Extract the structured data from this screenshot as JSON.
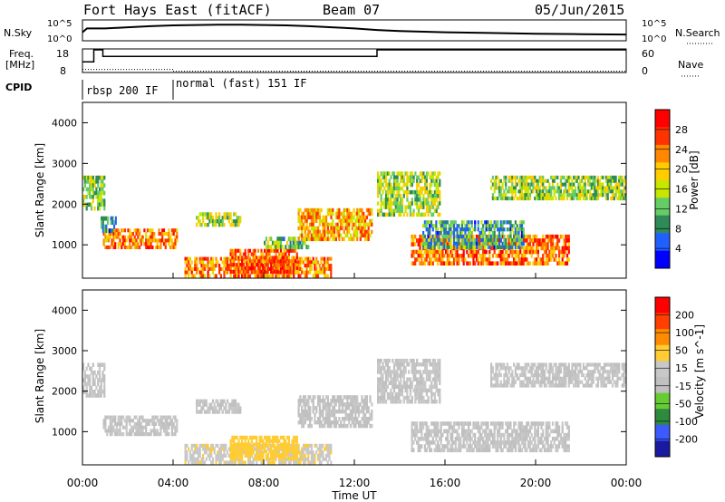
{
  "header": {
    "title": "Fort Hays East (fitACF)",
    "beam": "Beam 07",
    "date": "05/Jun/2015"
  },
  "nsky": {
    "left_label": "N.Sky",
    "left_ticks": [
      "10^5",
      "10^0"
    ],
    "right_label": "N.Search",
    "right_ticks": [
      "10^5",
      "10^0"
    ]
  },
  "freq": {
    "left_label_line1": "Freq.",
    "left_label_line2": "[MHz]",
    "left_ticks": [
      "18",
      "8"
    ],
    "right_label": "Nave",
    "right_ticks": [
      "60",
      "0"
    ]
  },
  "cpid": {
    "label": "CPID",
    "modes": [
      {
        "text": "rbsp 200 IF",
        "start_hour": 0,
        "end_hour": 4
      },
      {
        "text": "normal (fast) 151 IF",
        "start_hour": 4,
        "end_hour": 24
      }
    ]
  },
  "panels": {
    "power": {
      "ylabel": "Slant Range [km]",
      "cbar_label": "Power [dB]",
      "cbar_ticks": [
        "28",
        "24",
        "20",
        "16",
        "12",
        "8",
        "4"
      ]
    },
    "velocity": {
      "ylabel": "Slant Range [km]",
      "cbar_label": "Velocity [m s^-1]",
      "cbar_ticks": [
        "200",
        "100",
        "50",
        "15",
        "-15",
        "-50",
        "-100",
        "-200"
      ]
    }
  },
  "xaxis": {
    "label": "Time UT",
    "ticks": [
      "00:00",
      "04:00",
      "08:00",
      "12:00",
      "16:00",
      "20:00",
      "00:00"
    ]
  },
  "colors": {
    "power_scale": [
      "#0000ff",
      "#2060ff",
      "#2e8b57",
      "#66cc66",
      "#c8e600",
      "#ffcc00",
      "#ff8800",
      "#ff3300",
      "#ff0000"
    ],
    "velocity_scale": [
      "#1a1aa0",
      "#3b5bff",
      "#2e8b3e",
      "#66cc33",
      "#c0c0c0",
      "#c8c8c8",
      "#ffcc33",
      "#ff8c00",
      "#ff4000",
      "#ff0000"
    ]
  },
  "chart_data": [
    {
      "type": "line",
      "title": "N.Sky / N.Search",
      "xlabel": "Time UT",
      "x_range_hours": [
        0,
        24
      ],
      "series": [
        {
          "name": "N.Sky",
          "x": [
            0,
            0.2,
            1,
            2,
            3,
            4,
            5,
            6,
            7,
            8,
            9,
            10,
            11,
            12,
            13,
            14,
            16,
            18,
            20,
            22,
            24
          ],
          "values": [
            2.0,
            3.0,
            3.0,
            3.3,
            3.6,
            3.8,
            3.9,
            4.0,
            4.0,
            3.9,
            3.8,
            3.6,
            3.3,
            3.0,
            2.6,
            2.3,
            2.0,
            1.8,
            1.6,
            1.5,
            1.4
          ]
        }
      ],
      "ylim": [
        0,
        5
      ]
    },
    {
      "type": "line",
      "title": "Freq. / Nave",
      "x_range_hours": [
        0,
        24
      ],
      "series": [
        {
          "name": "Freq.",
          "x": [
            0,
            0.5,
            0.5,
            0.9,
            0.9,
            13,
            13,
            24
          ],
          "values": [
            12.5,
            12.5,
            18,
            18,
            15,
            15,
            18,
            18
          ]
        },
        {
          "name": "Nave",
          "x": [
            0,
            4,
            4,
            24
          ],
          "values": [
            6,
            6,
            1,
            1
          ]
        }
      ],
      "ylim": [
        8,
        18
      ]
    },
    {
      "type": "heatmap",
      "title": "Power [dB]",
      "xlabel": "Time UT",
      "ylabel": "Slant Range [km]",
      "xlim": [
        0,
        24
      ],
      "ylim": [
        180,
        4500
      ],
      "clim": [
        0,
        30
      ],
      "patches": [
        {
          "t0": 0,
          "t1": 1.0,
          "r0": 1850,
          "r1": 2700,
          "v": 13
        },
        {
          "t0": 0.9,
          "t1": 4.2,
          "r0": 900,
          "r1": 1400,
          "v": 22
        },
        {
          "t0": 0.8,
          "t1": 1.5,
          "r0": 1300,
          "r1": 1700,
          "v": 8
        },
        {
          "t0": 5,
          "t1": 7,
          "r0": 1450,
          "r1": 1800,
          "v": 14
        },
        {
          "t0": 4.5,
          "t1": 11,
          "r0": 200,
          "r1": 700,
          "v": 22
        },
        {
          "t0": 6.5,
          "t1": 9.5,
          "r0": 300,
          "r1": 900,
          "v": 24
        },
        {
          "t0": 8,
          "t1": 10,
          "r0": 900,
          "r1": 1200,
          "v": 12
        },
        {
          "t0": 9.5,
          "t1": 12.8,
          "r0": 1100,
          "r1": 1900,
          "v": 20
        },
        {
          "t0": 13,
          "t1": 15.8,
          "r0": 1700,
          "r1": 2800,
          "v": 14
        },
        {
          "t0": 14.5,
          "t1": 21.5,
          "r0": 500,
          "r1": 1250,
          "v": 23
        },
        {
          "t0": 15,
          "t1": 19.5,
          "r0": 900,
          "r1": 1600,
          "v": 9
        },
        {
          "t0": 18,
          "t1": 24,
          "r0": 2100,
          "r1": 2700,
          "v": 13
        }
      ]
    },
    {
      "type": "heatmap",
      "title": "Velocity [m s^-1]",
      "xlabel": "Time UT",
      "ylabel": "Slant Range [km]",
      "xlim": [
        0,
        24
      ],
      "ylim": [
        180,
        4500
      ],
      "clim": [
        -200,
        200
      ],
      "patches": [
        {
          "t0": 0,
          "t1": 1.0,
          "r0": 1850,
          "r1": 2700,
          "v": 0
        },
        {
          "t0": 0.9,
          "t1": 4.2,
          "r0": 900,
          "r1": 1400,
          "v": 0
        },
        {
          "t0": 5,
          "t1": 7,
          "r0": 1450,
          "r1": 1800,
          "v": 0
        },
        {
          "t0": 4.5,
          "t1": 11,
          "r0": 200,
          "r1": 700,
          "v": -10
        },
        {
          "t0": 6.5,
          "t1": 9.5,
          "r0": 300,
          "r1": 900,
          "v": -40
        },
        {
          "t0": 9.5,
          "t1": 12.8,
          "r0": 1100,
          "r1": 1900,
          "v": 5
        },
        {
          "t0": 13,
          "t1": 15.8,
          "r0": 1700,
          "r1": 2800,
          "v": 0
        },
        {
          "t0": 14.5,
          "t1": 21.5,
          "r0": 500,
          "r1": 1250,
          "v": 0
        },
        {
          "t0": 18,
          "t1": 24,
          "r0": 2100,
          "r1": 2700,
          "v": 0
        }
      ]
    }
  ]
}
